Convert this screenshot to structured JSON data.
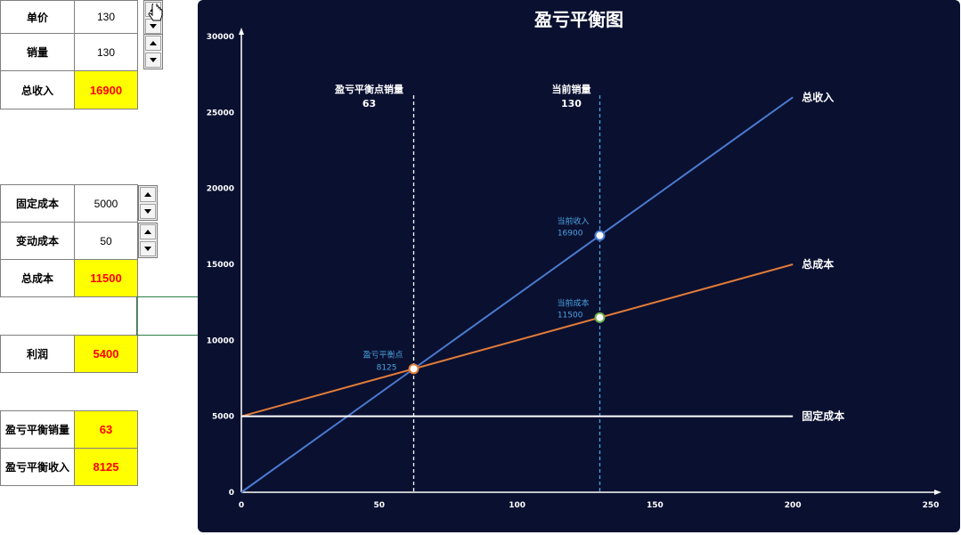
{
  "inputs": {
    "price_label": "单价",
    "price_value": "130",
    "volume_label": "销量",
    "volume_value": "130",
    "revenue_label": "总收入",
    "revenue_value": "16900",
    "fixed_cost_label": "固定成本",
    "fixed_cost_value": "5000",
    "var_cost_label": "变动成本",
    "var_cost_value": "50",
    "total_cost_label": "总成本",
    "total_cost_value": "11500",
    "profit_label": "利润",
    "profit_value": "5400",
    "be_volume_label": "盈亏平衡销量",
    "be_volume_value": "63",
    "be_revenue_label": "盈亏平衡收入",
    "be_revenue_value": "8125"
  },
  "colors": {
    "highlight_bg": "#ffff00",
    "highlight_text": "#ff0000",
    "chart_bg": "#0a1030",
    "revenue_line": "#4a7bd0",
    "cost_line": "#e07b39",
    "fixed_line": "#ffffff",
    "current_marker_line": "#4aa3e0",
    "annotation_text": "#4aa3e0"
  },
  "chart_data": {
    "type": "line",
    "title": "盈亏平衡图",
    "xlim": [
      0,
      250
    ],
    "ylim": [
      0,
      30000
    ],
    "x_ticks": [
      "0",
      "50",
      "100",
      "150",
      "200",
      "250"
    ],
    "y_ticks": [
      "0",
      "5000",
      "10000",
      "15000",
      "20000",
      "25000",
      "30000"
    ],
    "grid": false,
    "series": [
      {
        "name": "总收入",
        "x": [
          0,
          200
        ],
        "y": [
          0,
          26000
        ]
      },
      {
        "name": "总成本",
        "x": [
          0,
          200
        ],
        "y": [
          5000,
          15000
        ]
      },
      {
        "name": "固定成本",
        "x": [
          0,
          200
        ],
        "y": [
          5000,
          5000
        ]
      }
    ],
    "vertical_markers": [
      {
        "label": "盈亏平衡点销量",
        "value_text": "63",
        "x": 62.5
      },
      {
        "label": "当前销量",
        "value_text": "130",
        "x": 130
      }
    ],
    "points": [
      {
        "label": "盈亏平衡点",
        "value_text": "8125",
        "x": 62.5,
        "y": 8125
      },
      {
        "label": "当前收入",
        "value_text": "16900",
        "x": 130,
        "y": 16900
      },
      {
        "label": "当前成本",
        "value_text": "11500",
        "x": 130,
        "y": 11500
      }
    ]
  }
}
